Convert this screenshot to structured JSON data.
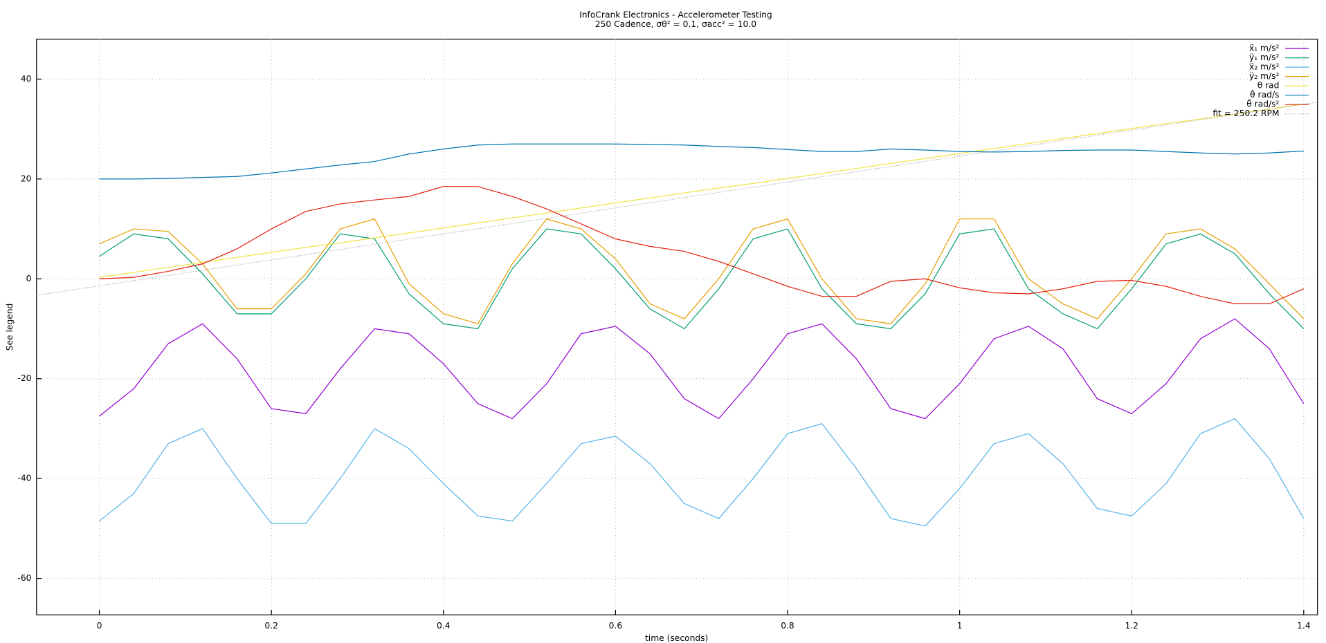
{
  "chart_data": {
    "type": "line",
    "title": "InfoCrank Electronics - Accelerometer Testing",
    "subtitle": "250 Cadence, σθ² = 0.1, σacc² = 10.0",
    "x_label": "time (seconds)",
    "y_label": "See legend",
    "xlim": [
      -0.073,
      1.416
    ],
    "ylim": [
      -67.3,
      48
    ],
    "xticks": [
      0,
      0.2,
      0.4,
      0.6,
      0.8,
      1,
      1.2,
      1.4
    ],
    "yticks": [
      -60,
      -40,
      -20,
      0,
      20,
      40
    ],
    "grid": true,
    "legend": "top-right",
    "x": [
      0,
      0.04,
      0.08,
      0.12,
      0.16,
      0.2,
      0.24,
      0.28,
      0.32,
      0.36,
      0.4,
      0.44,
      0.48,
      0.52,
      0.56,
      0.6,
      0.64,
      0.68,
      0.72,
      0.76,
      0.8,
      0.84,
      0.88,
      0.92,
      0.96,
      1,
      1.04,
      1.08,
      1.12,
      1.16,
      1.2,
      1.24,
      1.28,
      1.32,
      1.36,
      1.4
    ],
    "series": [
      {
        "name": "ẍ₁ m/s²",
        "color": "#9400d3",
        "values": [
          -27.5,
          -22,
          -13,
          -9,
          -16,
          -26,
          -27,
          -18,
          -10,
          -11,
          -17,
          -25,
          -28,
          -21,
          -11,
          -9.5,
          -15,
          -24,
          -28,
          -20,
          -11,
          -9,
          -16,
          -26,
          -28,
          -21,
          -12,
          -9.5,
          -14,
          -24,
          -27,
          -21,
          -12,
          -8,
          -14,
          -25
        ]
      },
      {
        "name": "ÿ₁ m/s²",
        "color": "#009e73",
        "values": [
          4.5,
          9,
          8,
          1,
          -7,
          -7,
          0,
          9,
          8,
          -3,
          -9,
          -10,
          2,
          10,
          9,
          2,
          -6,
          -10,
          -2,
          8,
          10,
          -2,
          -9,
          -10,
          -3,
          9,
          10,
          -2,
          -7,
          -10,
          -2,
          7,
          9,
          5,
          -3,
          -10
        ]
      },
      {
        "name": "ẍ₂ m/s²",
        "color": "#56b4e9",
        "values": [
          -48.5,
          -43,
          -33,
          -30,
          -40,
          -49,
          -49,
          -40,
          -30,
          -34,
          -41,
          -47.5,
          -48.5,
          -41,
          -33,
          -31.5,
          -37,
          -45,
          -48,
          -40,
          -31,
          -29,
          -38,
          -48,
          -49.5,
          -42,
          -33,
          -31,
          -37,
          -46,
          -47.5,
          -41,
          -31,
          -28,
          -36,
          -48
        ]
      },
      {
        "name": "ÿ₂ m/s²",
        "color": "#e69f00",
        "values": [
          7,
          10,
          9.5,
          3,
          -6,
          -6,
          1,
          10,
          12,
          -1,
          -7,
          -9,
          3,
          12,
          10,
          4,
          -5,
          -8,
          0,
          10,
          12,
          0,
          -8,
          -9,
          -1,
          12,
          12,
          0,
          -5,
          -8,
          0,
          9,
          10,
          6,
          -1,
          -8
        ]
      },
      {
        "name": "θ rad",
        "color": "#f0e442",
        "values": [
          0.3,
          1.3,
          2.3,
          3.3,
          4.3,
          5.3,
          6.3,
          7.2,
          8.2,
          9.2,
          10.2,
          11.2,
          12.2,
          13.2,
          14.2,
          15.2,
          16.2,
          17.2,
          18.2,
          19.1,
          20.1,
          21.1,
          22.1,
          23.1,
          24.1,
          25.1,
          26.1,
          27.1,
          28.1,
          29.1,
          30.1,
          31.1,
          32,
          33,
          34,
          35
        ]
      },
      {
        "name": "θ̇ rad/s",
        "color": "#0072b2",
        "values": [
          20,
          20,
          20.1,
          20.3,
          20.5,
          21.2,
          22,
          22.8,
          23.5,
          25,
          26,
          26.8,
          27,
          27,
          27,
          27,
          26.9,
          26.8,
          26.5,
          26.3,
          25.9,
          25.5,
          25.5,
          26,
          25.8,
          25.5,
          25.4,
          25.5,
          25.7,
          25.8,
          25.8,
          25.5,
          25.2,
          25,
          25.2,
          25.6
        ]
      },
      {
        "name": "θ̈ rad/s²",
        "color": "#e51e10",
        "values": [
          0,
          0.3,
          1.5,
          3,
          6,
          10,
          13.5,
          15,
          15.8,
          16.5,
          18.5,
          18.5,
          16.5,
          14,
          11,
          8,
          6.5,
          5.5,
          3.5,
          1,
          -1.5,
          -3.5,
          -3.5,
          -0.5,
          0,
          -1.8,
          -2.8,
          -3,
          -2,
          -0.5,
          -0.3,
          -1.5,
          -3.5,
          -5,
          -5,
          -2
        ]
      },
      {
        "name": "fit = 250.2 RPM",
        "color": "#a0a0a0",
        "style": "dotted",
        "x": [
          -0.073,
          1.416
        ],
        "values": [
          -3.3,
          35.4
        ]
      }
    ]
  }
}
